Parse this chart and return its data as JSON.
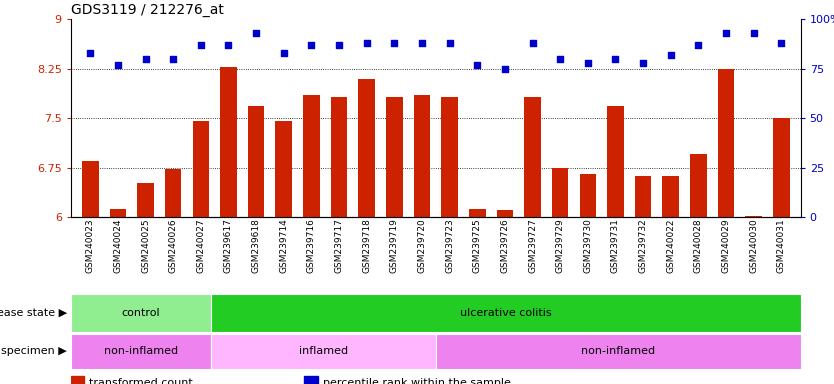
{
  "title": "GDS3119 / 212276_at",
  "samples": [
    "GSM240023",
    "GSM240024",
    "GSM240025",
    "GSM240026",
    "GSM240027",
    "GSM239617",
    "GSM239618",
    "GSM239714",
    "GSM239716",
    "GSM239717",
    "GSM239718",
    "GSM239719",
    "GSM239720",
    "GSM239723",
    "GSM239725",
    "GSM239726",
    "GSM239727",
    "GSM239729",
    "GSM239730",
    "GSM239731",
    "GSM239732",
    "GSM240022",
    "GSM240028",
    "GSM240029",
    "GSM240030",
    "GSM240031"
  ],
  "bar_values": [
    6.85,
    6.12,
    6.52,
    6.72,
    7.45,
    8.28,
    7.68,
    7.45,
    7.85,
    7.82,
    8.1,
    7.82,
    7.85,
    7.82,
    6.12,
    6.1,
    7.82,
    6.75,
    6.65,
    7.68,
    6.62,
    6.62,
    6.95,
    8.25,
    6.01,
    7.5
  ],
  "percentile_values": [
    83,
    77,
    80,
    80,
    87,
    87,
    93,
    83,
    87,
    87,
    88,
    88,
    88,
    88,
    77,
    75,
    88,
    80,
    78,
    80,
    78,
    82,
    87,
    93,
    93,
    88
  ],
  "bar_color": "#cc2200",
  "percentile_color": "#0000cc",
  "ylim_left": [
    6,
    9
  ],
  "ylim_right": [
    0,
    100
  ],
  "yticks_left": [
    6,
    6.75,
    7.5,
    8.25,
    9
  ],
  "yticks_right": [
    0,
    25,
    50,
    75,
    100
  ],
  "grid_values": [
    6.75,
    7.5,
    8.25
  ],
  "disease_state_groups": [
    {
      "label": "control",
      "start": 0,
      "end": 5,
      "color": "#90ee90"
    },
    {
      "label": "ulcerative colitis",
      "start": 5,
      "end": 26,
      "color": "#22cc22"
    }
  ],
  "specimen_groups": [
    {
      "label": "non-inflamed",
      "start": 0,
      "end": 5,
      "color": "#ee82ee"
    },
    {
      "label": "inflamed",
      "start": 5,
      "end": 13,
      "color": "#ffb6ff"
    },
    {
      "label": "non-inflamed",
      "start": 13,
      "end": 26,
      "color": "#ee82ee"
    }
  ],
  "legend_items": [
    {
      "label": "transformed count",
      "color": "#cc2200"
    },
    {
      "label": "percentile rank within the sample",
      "color": "#0000cc"
    }
  ],
  "plot_bg": "#ffffff",
  "fig_bg": "#ffffff"
}
